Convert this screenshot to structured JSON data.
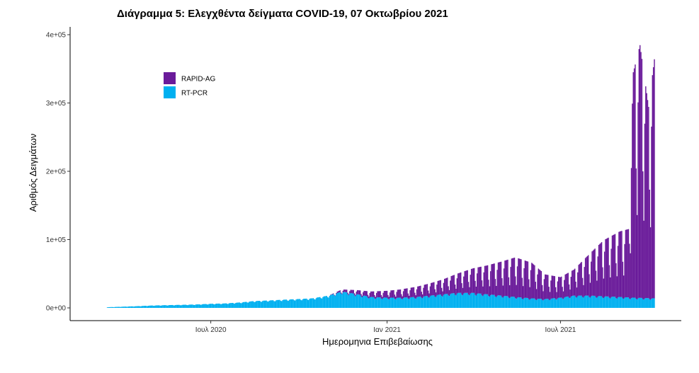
{
  "chart_data": {
    "type": "bar",
    "stacked": true,
    "title": "Διάγραμμα 5: Ελεγχθέντα δείγματα COVID-19, 07 Οκτωβρίου 2021",
    "xlabel": "Ημερομηνια Επιβεβαίωσης",
    "ylabel": "Αριθμός Δειγμάτων",
    "ylim": [
      0,
      400000
    ],
    "xlim": [
      "2020-03-05",
      "2021-10-07"
    ],
    "grid": false,
    "legend_position": "top-left",
    "x_ticks": [
      {
        "date": "2020-07-01",
        "label": "Ιουλ 2020"
      },
      {
        "date": "2021-01-01",
        "label": "Ιαν 2021"
      },
      {
        "date": "2021-07-01",
        "label": "Ιουλ 2021"
      }
    ],
    "y_ticks": [
      {
        "value": 0,
        "label": "0e+00"
      },
      {
        "value": 100000,
        "label": "1e+05"
      },
      {
        "value": 200000,
        "label": "2e+05"
      },
      {
        "value": 300000,
        "label": "3e+05"
      },
      {
        "value": 400000,
        "label": "4e+05"
      }
    ],
    "series": [
      {
        "name": "RT-PCR",
        "color": "#00B0F0",
        "points": [
          [
            "2020-03-15",
            1000
          ],
          [
            "2020-04-01",
            1800
          ],
          [
            "2020-04-15",
            2500
          ],
          [
            "2020-05-01",
            3500
          ],
          [
            "2020-05-15",
            4000
          ],
          [
            "2020-06-01",
            4500
          ],
          [
            "2020-06-15",
            5000
          ],
          [
            "2020-07-01",
            6000
          ],
          [
            "2020-07-15",
            6500
          ],
          [
            "2020-08-01",
            8000
          ],
          [
            "2020-08-15",
            10000
          ],
          [
            "2020-09-01",
            11000
          ],
          [
            "2020-09-15",
            12000
          ],
          [
            "2020-10-01",
            13000
          ],
          [
            "2020-10-15",
            14000
          ],
          [
            "2020-11-01",
            18000
          ],
          [
            "2020-11-15",
            24000
          ],
          [
            "2020-12-01",
            20000
          ],
          [
            "2020-12-15",
            16000
          ],
          [
            "2021-01-01",
            15000
          ],
          [
            "2021-01-15",
            15000
          ],
          [
            "2021-02-01",
            16000
          ],
          [
            "2021-02-15",
            18000
          ],
          [
            "2021-03-01",
            20000
          ],
          [
            "2021-03-15",
            22000
          ],
          [
            "2021-04-01",
            22000
          ],
          [
            "2021-04-15",
            20000
          ],
          [
            "2021-05-01",
            18000
          ],
          [
            "2021-05-15",
            16000
          ],
          [
            "2021-06-01",
            14000
          ],
          [
            "2021-06-15",
            13000
          ],
          [
            "2021-07-01",
            15000
          ],
          [
            "2021-07-15",
            18000
          ],
          [
            "2021-08-01",
            18000
          ],
          [
            "2021-08-15",
            17000
          ],
          [
            "2021-09-01",
            16000
          ],
          [
            "2021-09-15",
            15000
          ],
          [
            "2021-10-07",
            14000
          ]
        ]
      },
      {
        "name": "RAPID-AG",
        "color": "#6A1B9A",
        "points": [
          [
            "2020-11-01",
            0
          ],
          [
            "2020-11-15",
            3000
          ],
          [
            "2020-12-01",
            6000
          ],
          [
            "2020-12-15",
            8000
          ],
          [
            "2021-01-01",
            10000
          ],
          [
            "2021-01-15",
            12000
          ],
          [
            "2021-02-01",
            15000
          ],
          [
            "2021-02-15",
            18000
          ],
          [
            "2021-03-01",
            22000
          ],
          [
            "2021-03-15",
            28000
          ],
          [
            "2021-04-01",
            36000
          ],
          [
            "2021-04-15",
            42000
          ],
          [
            "2021-05-01",
            50000
          ],
          [
            "2021-05-15",
            58000
          ],
          [
            "2021-06-01",
            52000
          ],
          [
            "2021-06-15",
            36000
          ],
          [
            "2021-07-01",
            30000
          ],
          [
            "2021-07-15",
            38000
          ],
          [
            "2021-08-01",
            62000
          ],
          [
            "2021-08-15",
            82000
          ],
          [
            "2021-09-01",
            96000
          ],
          [
            "2021-09-10",
            100000
          ],
          [
            "2021-09-15",
            330000
          ],
          [
            "2021-09-22",
            370000
          ],
          [
            "2021-10-01",
            280000
          ],
          [
            "2021-10-07",
            350000
          ]
        ]
      }
    ]
  }
}
